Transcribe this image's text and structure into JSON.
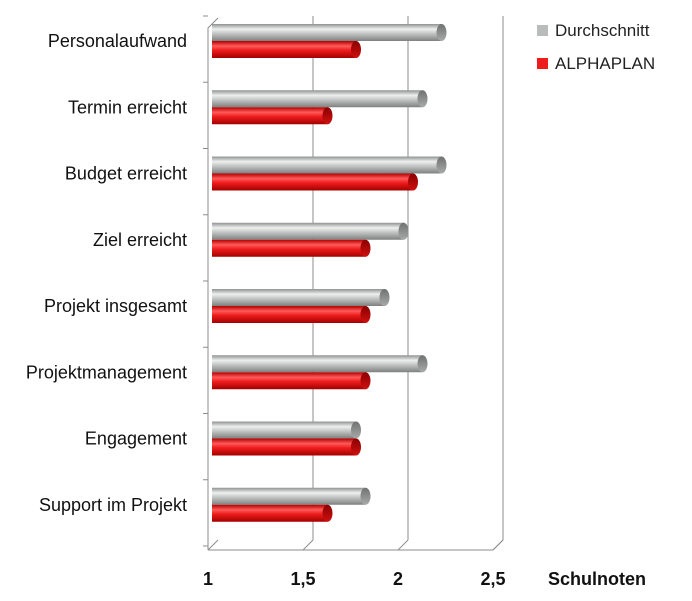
{
  "chart_data": {
    "type": "bar",
    "orientation": "horizontal",
    "categories": [
      "Personalaufwand",
      "Termin erreicht",
      "Budget erreicht",
      "Ziel erreicht",
      "Projekt insgesamt",
      "Projektmanagement",
      "Engagement",
      "Support im Projekt"
    ],
    "series": [
      {
        "name": "Durchschnitt",
        "color": "#b9bcbb",
        "values": [
          2.25,
          2.15,
          2.25,
          2.05,
          1.95,
          2.15,
          1.8,
          1.85
        ]
      },
      {
        "name": "ALPHAPLAN",
        "color": "#ee1c1c",
        "values": [
          1.8,
          1.65,
          2.1,
          1.85,
          1.85,
          1.85,
          1.8,
          1.65
        ]
      }
    ],
    "xlim": [
      1,
      2.5
    ],
    "xticks": [
      "1",
      "1,5",
      "2",
      "2,5"
    ],
    "xtick_values": [
      1,
      1.5,
      2,
      2.5
    ],
    "xlabel": "Schulnoten",
    "grid": true,
    "legend": "top-right",
    "style": "3d-cylinder"
  }
}
